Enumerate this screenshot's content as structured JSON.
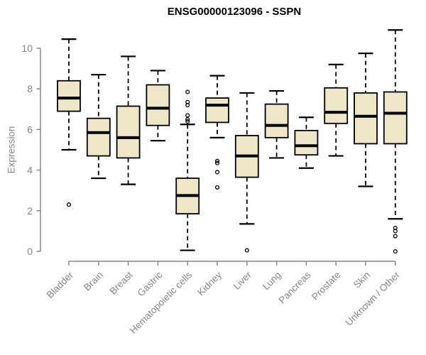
{
  "chart_data": {
    "type": "boxplot",
    "title": "ENSG00000123096 - SSPN",
    "ylabel": "Expression",
    "xlabel": "",
    "ylim": [
      0,
      11
    ],
    "yticks": [
      0,
      2,
      4,
      6,
      8,
      10
    ],
    "grid": false,
    "legend": "none",
    "background": "#FFFFFF",
    "axis_color": "#878787",
    "box_fill": "#EDE7C8",
    "box_border": "#000000",
    "median_color": "#000000",
    "outlier_color": "#000000",
    "categories": [
      "Bladder",
      "Brain",
      "Breast",
      "Gastric",
      "Hematopoietic cells",
      "Kidney",
      "Liver",
      "Lung",
      "Pancreas",
      "Prostate",
      "Skin",
      "Unknown / Other"
    ],
    "series": [
      {
        "name": "Bladder",
        "low": 5.0,
        "q1": 6.9,
        "median": 7.55,
        "q3": 8.4,
        "high": 10.45,
        "outliers": [
          2.3
        ]
      },
      {
        "name": "Brain",
        "low": 3.6,
        "q1": 4.7,
        "median": 5.85,
        "q3": 6.55,
        "high": 8.7,
        "outliers": []
      },
      {
        "name": "Breast",
        "low": 3.3,
        "q1": 4.6,
        "median": 5.6,
        "q3": 7.15,
        "high": 9.6,
        "outliers": []
      },
      {
        "name": "Gastric",
        "low": 5.45,
        "q1": 6.2,
        "median": 7.05,
        "q3": 8.2,
        "high": 8.9,
        "outliers": []
      },
      {
        "name": "Hematopoietic cells",
        "low": 0.05,
        "q1": 1.85,
        "median": 2.75,
        "q3": 3.6,
        "high": 6.25,
        "outliers": [
          7.85,
          7.35,
          7.2,
          6.7,
          6.5,
          6.4
        ]
      },
      {
        "name": "Kidney",
        "low": 5.6,
        "q1": 6.35,
        "median": 7.2,
        "q3": 7.55,
        "high": 8.65,
        "outliers": [
          4.45,
          4.35,
          3.9,
          3.15
        ]
      },
      {
        "name": "Liver",
        "low": 1.35,
        "q1": 3.65,
        "median": 4.7,
        "q3": 5.7,
        "high": 7.8,
        "outliers": [
          0.05
        ]
      },
      {
        "name": "Lung",
        "low": 4.6,
        "q1": 5.6,
        "median": 6.2,
        "q3": 7.25,
        "high": 7.9,
        "outliers": []
      },
      {
        "name": "Pancreas",
        "low": 4.1,
        "q1": 4.75,
        "median": 5.2,
        "q3": 5.95,
        "high": 6.6,
        "outliers": []
      },
      {
        "name": "Prostate",
        "low": 4.7,
        "q1": 6.3,
        "median": 6.85,
        "q3": 8.05,
        "high": 9.2,
        "outliers": []
      },
      {
        "name": "Skin",
        "low": 3.2,
        "q1": 5.3,
        "median": 6.65,
        "q3": 7.8,
        "high": 9.75,
        "outliers": []
      },
      {
        "name": "Unknown / Other",
        "low": 1.6,
        "q1": 5.3,
        "median": 6.8,
        "q3": 7.85,
        "high": 10.9,
        "outliers": [
          1.15,
          1.0,
          0.75,
          0.0
        ]
      }
    ]
  }
}
